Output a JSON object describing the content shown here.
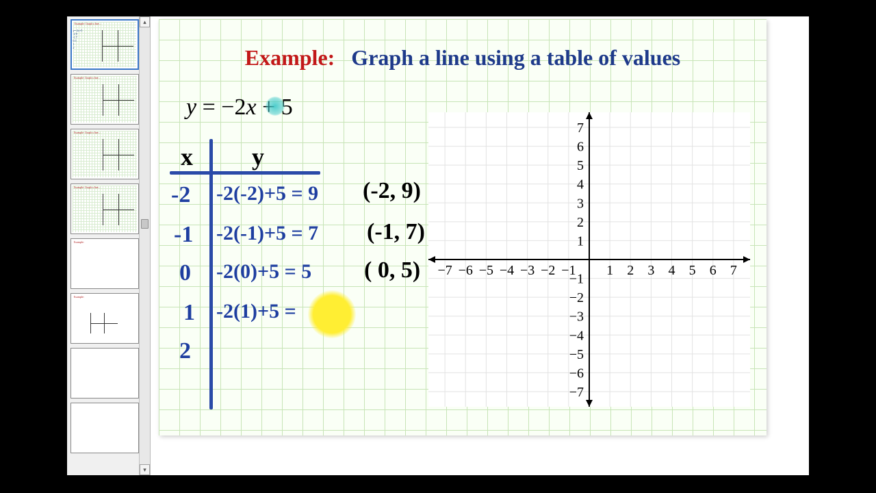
{
  "title": {
    "example_label": "Example:",
    "rest": "Graph a line using a table of values"
  },
  "equation": "y = −2x + 5",
  "table": {
    "headers": {
      "x": "x",
      "y": "y"
    },
    "rows": [
      {
        "x": "-2",
        "y_expr": "-2(-2)+5 = 9",
        "point": "(-2, 9)"
      },
      {
        "x": "-1",
        "y_expr": "-2(-1)+5 = 7",
        "point": "(-1, 7)"
      },
      {
        "x": "0",
        "y_expr": "-2(0)+5 = 5",
        "point": "( 0, 5)"
      },
      {
        "x": "1",
        "y_expr": "-2(1)+5 =",
        "point": ""
      },
      {
        "x": "2",
        "y_expr": "",
        "point": ""
      }
    ]
  },
  "graph": {
    "type": "scatter",
    "x_ticks": [
      -7,
      -6,
      -5,
      -4,
      -3,
      -2,
      -1,
      1,
      2,
      3,
      4,
      5,
      6,
      7
    ],
    "y_ticks": [
      -7,
      -6,
      -5,
      -4,
      -3,
      -2,
      -1,
      1,
      2,
      3,
      4,
      5,
      6,
      7
    ],
    "xlim": [
      -7.8,
      7.8
    ],
    "ylim": [
      -7.8,
      7.8
    ],
    "tick_fontsize": 20,
    "axis_color": "#000000",
    "axis_width": 2,
    "grid_color": "#e2e2e2",
    "background_color": "#ffffff",
    "points_plotted": []
  },
  "colors": {
    "example_red": "#c21818",
    "title_blue": "#1e3a8a",
    "handwriting_blue": "#1e3ea0",
    "grid_green": "#c7e4b6",
    "slide_bg": "#fafff6",
    "cursor_cyan": "#3cc8c8",
    "highlight_yellow": "#ffee33"
  },
  "thumbnail_count": 8,
  "active_thumbnail": 0
}
